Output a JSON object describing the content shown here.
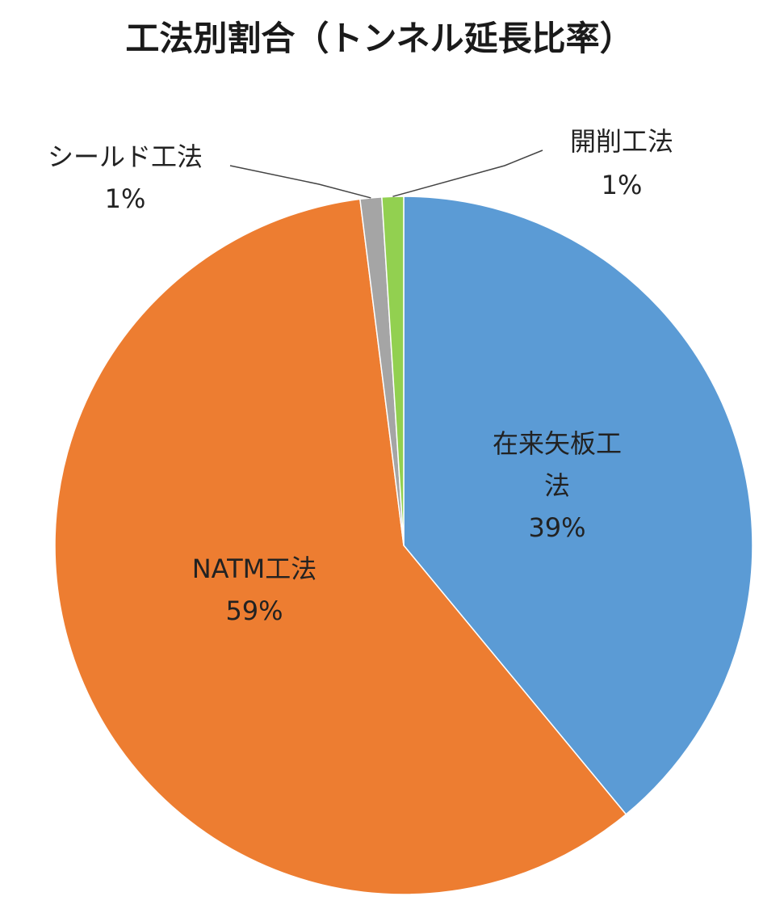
{
  "chart_data": {
    "type": "pie",
    "title": "工法別割合（トンネル延長比率）",
    "slices": [
      {
        "name": "在来矢板工法",
        "label_lines": [
          "在来矢板工",
          "法"
        ],
        "value": 39,
        "percent_label": "39%",
        "color": "#5B9BD5"
      },
      {
        "name": "NATM工法",
        "label_lines": [
          "NATM工法"
        ],
        "value": 59,
        "percent_label": "59%",
        "color": "#ED7D31"
      },
      {
        "name": "シールド工法",
        "label_lines": [
          "シールド工法"
        ],
        "value": 1,
        "percent_label": "1%",
        "color": "#A5A5A5"
      },
      {
        "name": "開削工法",
        "label_lines": [
          "開削工法"
        ],
        "value": 1,
        "percent_label": "1%",
        "color": "#92D050"
      }
    ],
    "legend": "none"
  }
}
